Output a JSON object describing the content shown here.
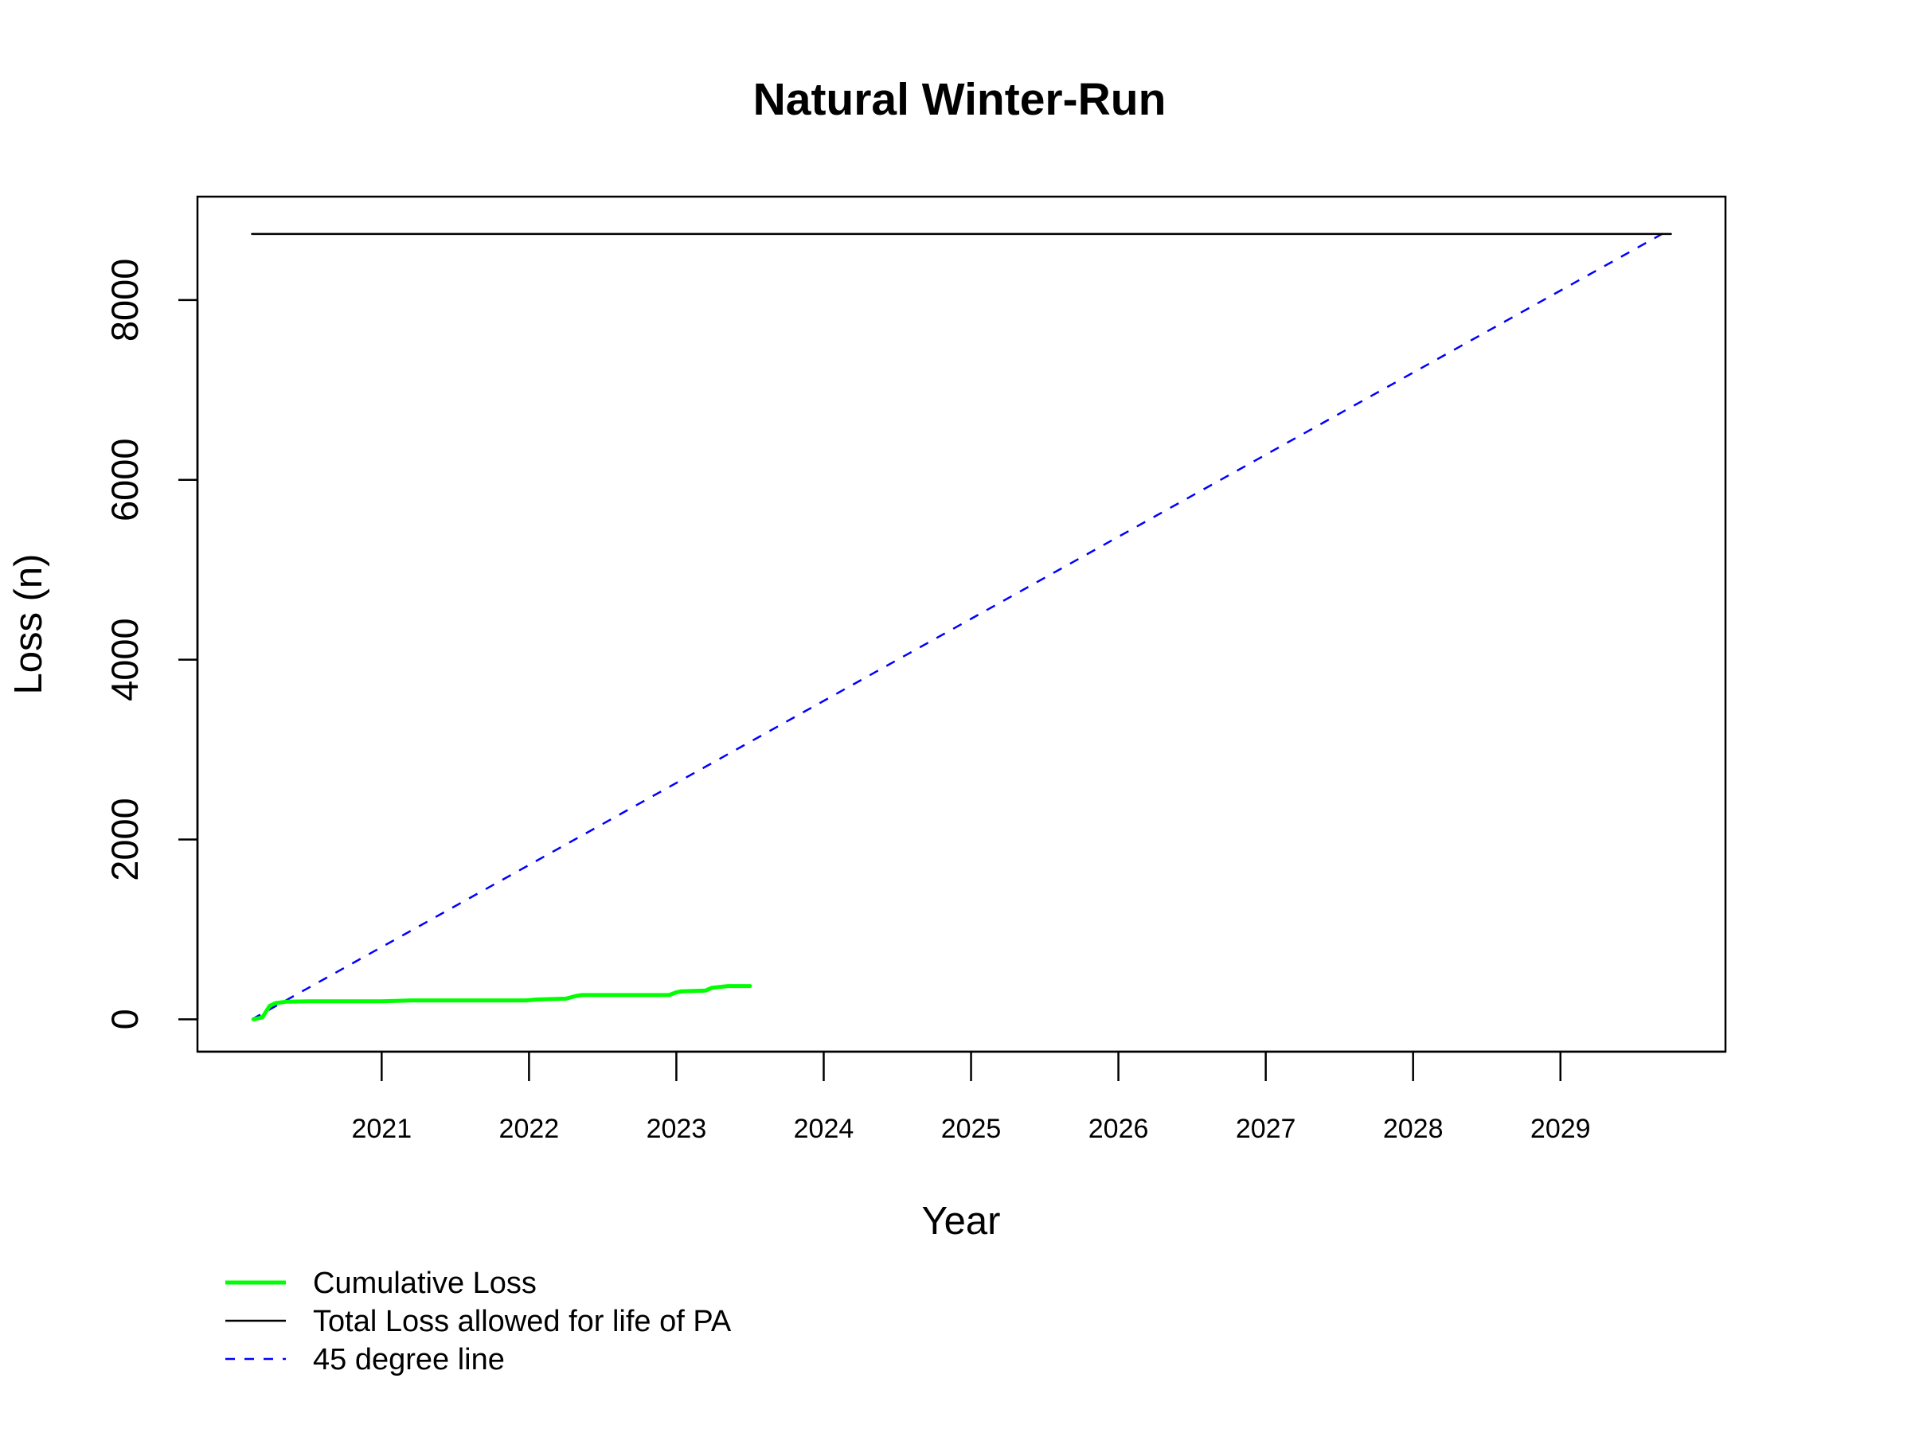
{
  "chart_data": {
    "type": "line",
    "title": "Natural Winter-Run",
    "xlabel": "Year",
    "ylabel": "Loss (n)",
    "xlim": [
      2019.75,
      2030.12
    ],
    "ylim": [
      -360,
      9150
    ],
    "x_ticks": [
      2021,
      2022,
      2023,
      2024,
      2025,
      2026,
      2027,
      2028,
      2029
    ],
    "x_tick_labels": [
      "2021",
      "2022",
      "2023",
      "2024",
      "2025",
      "2026",
      "2027",
      "2028",
      "2029"
    ],
    "y_ticks": [
      0,
      2000,
      4000,
      6000,
      8000
    ],
    "y_tick_labels": [
      "0",
      "2000",
      "4000",
      "6000",
      "8000"
    ],
    "grid": false,
    "legend_position": "bottom-left (below plot)",
    "series": [
      {
        "name": "Cumulative Loss",
        "color": "#00ff00",
        "style": "solid-thick",
        "x": [
          2020.13,
          2020.19,
          2020.24,
          2020.28,
          2020.35,
          2020.5,
          2021.0,
          2021.2,
          2021.5,
          2021.98,
          2022.05,
          2022.25,
          2022.32,
          2022.36,
          2022.5,
          2022.95,
          2023.0,
          2023.03,
          2023.2,
          2023.24,
          2023.35,
          2023.5
        ],
        "y": [
          0,
          20,
          150,
          180,
          195,
          200,
          200,
          210,
          210,
          210,
          220,
          230,
          260,
          270,
          270,
          270,
          300,
          310,
          320,
          350,
          370,
          370
        ]
      },
      {
        "name": "Total Loss allowed for life of PA",
        "color": "#000000",
        "style": "solid-thin",
        "x": [
          2020.12,
          2029.75
        ],
        "y": [
          8735,
          8735
        ]
      },
      {
        "name": "45 degree line",
        "color": "#0000ff",
        "style": "dashed",
        "x": [
          2020.12,
          2029.75
        ],
        "y": [
          0,
          8790
        ]
      }
    ]
  }
}
